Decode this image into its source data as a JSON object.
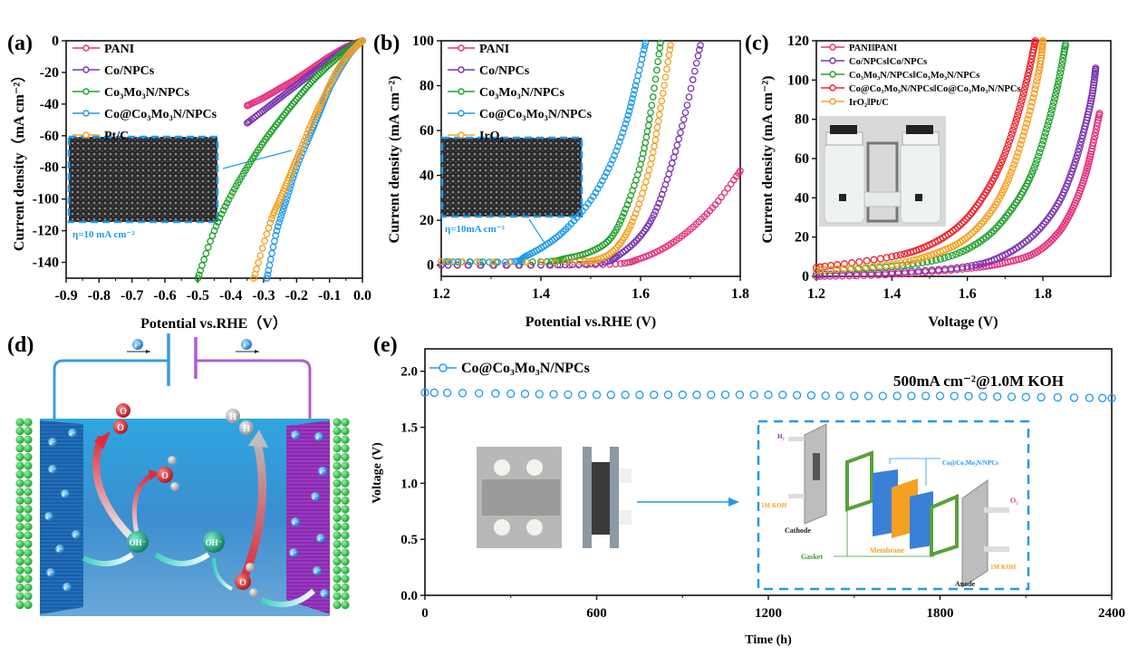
{
  "panel_labels": {
    "a": "(a)",
    "b": "(b)",
    "c": "(c)",
    "d": "(d)",
    "e": "(e)"
  },
  "colors": {
    "PANI": "#e6317f",
    "Co/NPCs": "#7a35b0",
    "Co3Mo3N/NPCs": "#1fa12a",
    "Co@Co3Mo3N/NPCs": "#1e9af0",
    "ref": "#f7a020",
    "red": "#f0202a",
    "inset_frame": "#1e9af0"
  },
  "chart_data": [
    {
      "id": "a",
      "type": "line",
      "title": "",
      "xlabel": "Potential vs.RHE（V）",
      "ylabel": "Current density（mA cm⁻²）",
      "xlim": [
        -0.9,
        0.0
      ],
      "ylim": [
        -150,
        0
      ],
      "xticks": [
        -0.9,
        -0.8,
        -0.7,
        -0.6,
        -0.5,
        -0.4,
        -0.3,
        -0.2,
        -0.1,
        0.0
      ],
      "xtick_labels": [
        "-0.9",
        "-0.8",
        "-0.7",
        "-0.6",
        "-0.5",
        "-0.4",
        "-0.3",
        "-0.2",
        "-0.1",
        "0.0"
      ],
      "yticks": [
        0,
        -20,
        -40,
        -60,
        -80,
        -100,
        -120,
        -140
      ],
      "ytick_labels": [
        "0",
        "-20",
        "-40",
        "-60",
        "-80",
        "-100",
        "-120",
        "-140"
      ],
      "grid": false,
      "legend_position": "top-left",
      "inset_annotation": "η=10 mA cm⁻²",
      "series": [
        {
          "name": "PANI",
          "label": "PANI",
          "color_key": "PANI",
          "x": [
            0.0,
            -0.05,
            -0.1,
            -0.15,
            -0.2,
            -0.25,
            -0.3,
            -0.35
          ],
          "y": [
            0,
            -4,
            -10,
            -17,
            -24,
            -30,
            -36,
            -41
          ]
        },
        {
          "name": "Co/NPCs",
          "label": "Co/NPCs",
          "color_key": "Co/NPCs",
          "x": [
            0.0,
            -0.05,
            -0.1,
            -0.15,
            -0.2,
            -0.25,
            -0.3,
            -0.35
          ],
          "y": [
            0,
            -5,
            -12,
            -20,
            -28,
            -36,
            -44,
            -52
          ]
        },
        {
          "name": "Co3Mo3N/NPCs",
          "label": "Co₃Mo₃N/NPCs",
          "color_key": "Co3Mo3N/NPCs",
          "x": [
            0.0,
            -0.05,
            -0.1,
            -0.15,
            -0.2,
            -0.25,
            -0.3,
            -0.35,
            -0.4,
            -0.45,
            -0.5
          ],
          "y": [
            0,
            -6,
            -15,
            -25,
            -37,
            -50,
            -64,
            -80,
            -98,
            -120,
            -150
          ]
        },
        {
          "name": "Co@Co3Mo3N/NPCs",
          "label": "Co@Co₃Mo₃N/NPCs",
          "color_key": "Co@Co3Mo3N/NPCs",
          "x": [
            0.0,
            -0.03,
            -0.06,
            -0.1,
            -0.13,
            -0.16,
            -0.2,
            -0.23,
            -0.26,
            -0.29
          ],
          "y": [
            0,
            -6,
            -15,
            -30,
            -45,
            -60,
            -80,
            -100,
            -120,
            -150
          ]
        },
        {
          "name": "Pt/C",
          "label": "Pt/C",
          "color_key": "ref",
          "x": [
            0.0,
            -0.04,
            -0.08,
            -0.12,
            -0.15,
            -0.19,
            -0.22,
            -0.25,
            -0.28,
            -0.33
          ],
          "y": [
            0,
            -8,
            -20,
            -37,
            -50,
            -70,
            -85,
            -100,
            -115,
            -150
          ]
        }
      ]
    },
    {
      "id": "b",
      "type": "line",
      "title": "",
      "xlabel": "Potential vs.RHE (V)",
      "ylabel": "Current density (mA cm⁻²)",
      "xlim": [
        1.2,
        1.8
      ],
      "ylim": [
        -5,
        100
      ],
      "xticks": [
        1.2,
        1.4,
        1.6,
        1.8
      ],
      "xtick_labels": [
        "1.2",
        "1.4",
        "1.6",
        "1.8"
      ],
      "yticks": [
        0,
        20,
        40,
        60,
        80,
        100
      ],
      "ytick_labels": [
        "0",
        "20",
        "40",
        "60",
        "80",
        "100"
      ],
      "grid": false,
      "legend_position": "top-left",
      "inset_annotation": "η=10mA cm⁻²",
      "series": [
        {
          "name": "PANI",
          "label": "PANI",
          "color_key": "PANI",
          "x": [
            1.2,
            1.4,
            1.55,
            1.6,
            1.65,
            1.7,
            1.75,
            1.8
          ],
          "y": [
            0,
            0,
            0.5,
            3,
            8,
            16,
            27,
            42
          ]
        },
        {
          "name": "Co/NPCs",
          "label": "Co/NPCs",
          "color_key": "Co/NPCs",
          "x": [
            1.2,
            1.4,
            1.52,
            1.56,
            1.6,
            1.63,
            1.66,
            1.69,
            1.72
          ],
          "y": [
            0,
            0,
            1,
            5,
            13,
            24,
            43,
            68,
            98
          ]
        },
        {
          "name": "Co3Mo3N/NPCs",
          "label": "Co₃Mo₃N/NPCs",
          "color_key": "Co3Mo3N/NPCs",
          "x": [
            1.2,
            1.4,
            1.45,
            1.5,
            1.54,
            1.57,
            1.6,
            1.62,
            1.64
          ],
          "y": [
            1.5,
            1.5,
            3,
            6,
            12,
            25,
            45,
            68,
            99
          ]
        },
        {
          "name": "Co@Co3Mo3N/NPCs",
          "label": "Co@Co₃Mo₃N/NPCs",
          "color_key": "Co@Co3Mo3N/NPCs",
          "x": [
            1.2,
            1.34,
            1.37,
            1.41,
            1.45,
            1.5,
            1.54,
            1.57,
            1.59,
            1.61
          ],
          "y": [
            1.5,
            1.5,
            4,
            9,
            16,
            29,
            45,
            63,
            80,
            99
          ]
        },
        {
          "name": "IrO2",
          "label": "IrO₂",
          "color_key": "ref",
          "x": [
            1.2,
            1.45,
            1.52,
            1.56,
            1.59,
            1.62,
            1.64,
            1.66
          ],
          "y": [
            1.5,
            1.5,
            3,
            10,
            23,
            45,
            70,
            98
          ]
        }
      ]
    },
    {
      "id": "c",
      "type": "line",
      "title": "",
      "xlabel": "Voltage (V)",
      "ylabel": "Current density (mA cm⁻²)",
      "xlim": [
        1.2,
        1.98
      ],
      "ylim": [
        0,
        120
      ],
      "xticks": [
        1.2,
        1.4,
        1.6,
        1.8
      ],
      "xtick_labels": [
        "1.2",
        "1.4",
        "1.6",
        "1.8"
      ],
      "yticks": [
        0,
        20,
        40,
        60,
        80,
        100,
        120
      ],
      "ytick_labels": [
        "0",
        "20",
        "40",
        "60",
        "80",
        "100",
        "120"
      ],
      "grid": false,
      "legend_position": "top-left",
      "series": [
        {
          "name": "PANI||PANI",
          "label": "PANI‖PANI",
          "color_key": "PANI",
          "x": [
            1.2,
            1.4,
            1.6,
            1.7,
            1.78,
            1.84,
            1.88,
            1.91,
            1.93,
            1.95
          ],
          "y": [
            0,
            1,
            4,
            7,
            12,
            22,
            35,
            50,
            65,
            83
          ]
        },
        {
          "name": "Co/NPCs||Co/NPCs",
          "label": "Co/NPCs‖Co/NPCs",
          "color_key": "Co/NPCs",
          "x": [
            1.2,
            1.4,
            1.6,
            1.7,
            1.78,
            1.84,
            1.88,
            1.91,
            1.93,
            1.94
          ],
          "y": [
            1,
            2,
            5,
            11,
            22,
            37,
            55,
            75,
            92,
            106
          ]
        },
        {
          "name": "Co3Mo3N/NPCs||Co3Mo3N/NPCs",
          "label": "Co₃Mo₃N/NPCs‖Co₃Mo₃N/NPCs",
          "color_key": "Co3Mo3N/NPCs",
          "x": [
            1.2,
            1.4,
            1.55,
            1.65,
            1.72,
            1.77,
            1.81,
            1.84,
            1.86
          ],
          "y": [
            3,
            5,
            10,
            20,
            35,
            52,
            75,
            98,
            118
          ]
        },
        {
          "name": "Co@Co3Mo3N/NPCs||Co@Co3Mo3N/NPCs",
          "label": "Co@Co₃Mo₃N/NPCs‖Co@Co₃Mo₃N/NPCs",
          "color_key": "red",
          "x": [
            1.2,
            1.4,
            1.5,
            1.58,
            1.64,
            1.69,
            1.73,
            1.76,
            1.78
          ],
          "y": [
            4.5,
            10,
            16,
            26,
            40,
            58,
            80,
            102,
            120
          ]
        },
        {
          "name": "IrO2||Pt/C",
          "label": "IrO₂‖Pt/C",
          "color_key": "ref",
          "x": [
            1.2,
            1.4,
            1.52,
            1.6,
            1.67,
            1.72,
            1.76,
            1.79,
            1.8
          ],
          "y": [
            3,
            6,
            12,
            20,
            35,
            55,
            80,
            105,
            120
          ]
        }
      ]
    },
    {
      "id": "e",
      "type": "line",
      "title": "",
      "annotation": "500mA cm⁻²@1.0M KOH",
      "xlabel": "Time (h)",
      "ylabel": "Voltage (V)",
      "xlim": [
        0,
        2400
      ],
      "ylim": [
        0,
        2.2
      ],
      "xticks": [
        0,
        600,
        1200,
        1800,
        2400
      ],
      "xtick_labels": [
        "0",
        "600",
        "1200",
        "1800",
        "2400"
      ],
      "yticks": [
        0.0,
        0.5,
        1.0,
        1.5,
        2.0
      ],
      "ytick_labels": [
        "0.0",
        "0.5",
        "1.0",
        "1.5",
        "2.0"
      ],
      "grid": false,
      "legend_position": "top-left",
      "series": [
        {
          "name": "Co@Co3Mo3N/NPCs",
          "label": "Co@Co₃Mo₃N/NPCs",
          "color_key": "Co@Co3Mo3N/NPCs",
          "x": [
            0,
            300,
            600,
            900,
            1200,
            1500,
            1800,
            2100,
            2400
          ],
          "y": [
            1.81,
            1.8,
            1.79,
            1.79,
            1.79,
            1.78,
            1.78,
            1.77,
            1.76
          ]
        }
      ],
      "inset_labels": {
        "h2": "H₂",
        "o2": "O₂",
        "koh_left": "1M KOH",
        "koh_right": "1M KOH",
        "cathode": "Cathode",
        "anode": "Anode",
        "gasket": "Gasket",
        "membrane": "Membrane",
        "catalyst": "Co@Co₃Mo₃N/NPCs"
      }
    }
  ],
  "schematic_d": {
    "electron": "e⁻",
    "o2_atom": "O",
    "h2_atom": "H",
    "hydroxide": "OH⁻",
    "water_o": "O",
    "water_h": "H"
  }
}
